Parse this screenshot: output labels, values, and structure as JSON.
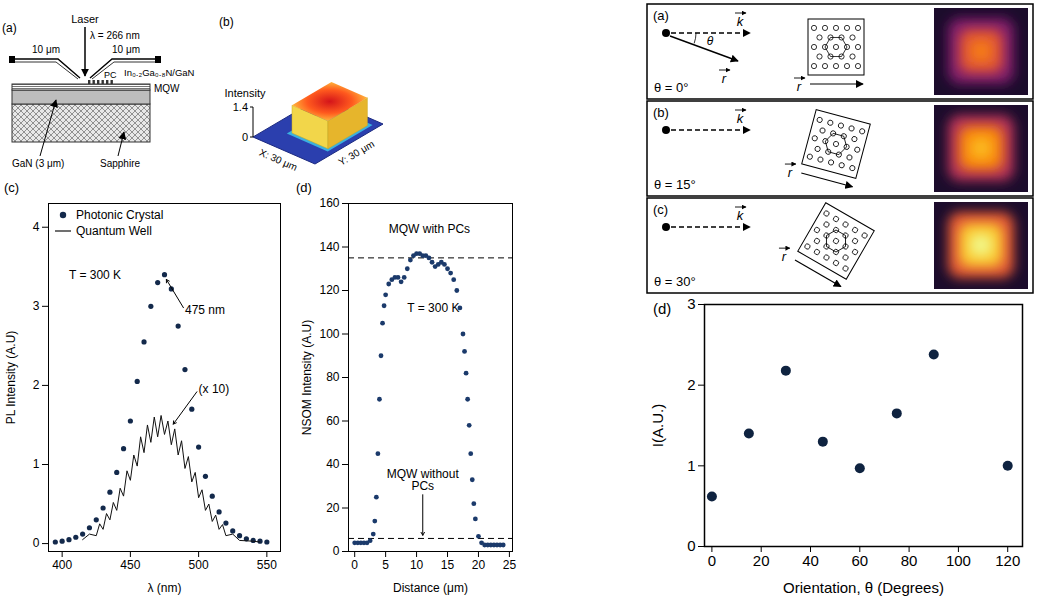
{
  "schematic": {
    "panel": "(a)",
    "laser": "Laser",
    "wavelength": "λ = 266 nm",
    "distance_left": "10 μm",
    "distance_right": "10 μm",
    "pc_label": "PC",
    "mqw_label": "In₀.₂Ga₀.₈N/GaN",
    "mqw_sublabel": "MQW",
    "gan_label": "GaN (3 μm)",
    "substrate_label": "Sapphire"
  },
  "surface": {
    "panel": "(b)",
    "zlabel": "Intensity",
    "zlim": [
      0,
      1.4
    ],
    "zticks": [
      0,
      1.4
    ],
    "peak": 1.3,
    "x_label": "X: 30 μm",
    "y_label": "Y: 30 μm"
  },
  "orientation_panels": {
    "k_label": "k",
    "r_label": "r",
    "panels": [
      {
        "panel": "(a)",
        "label": "θ = 0°",
        "theta": 0,
        "angle_label": "θ"
      },
      {
        "panel": "(b)",
        "label": "θ = 15°",
        "theta": 15
      },
      {
        "panel": "(c)",
        "label": "θ = 30°",
        "theta": 30
      }
    ]
  },
  "chart_data": [
    {
      "panel": "(c)",
      "type": "line",
      "xlabel": "λ (nm)",
      "ylabel": "PL Intensity (A.U)",
      "xlim": [
        390,
        560
      ],
      "xticks": [
        400,
        450,
        500,
        550
      ],
      "ylim": [
        -0.1,
        4.3
      ],
      "yticks": [
        0,
        1,
        2,
        3,
        4
      ],
      "legend": "top-left",
      "series": [
        {
          "name": "Photonic Crystal",
          "type": "scatter",
          "marker": "circle",
          "color": "#13294b",
          "x": [
            395,
            400,
            405,
            410,
            415,
            420,
            425,
            430,
            435,
            440,
            445,
            450,
            455,
            460,
            465,
            470,
            475,
            480,
            485,
            490,
            495,
            500,
            505,
            510,
            515,
            520,
            525,
            530,
            535,
            540,
            545,
            550
          ],
          "values": [
            0.02,
            0.03,
            0.05,
            0.08,
            0.12,
            0.2,
            0.3,
            0.45,
            0.65,
            0.9,
            1.2,
            1.55,
            2.05,
            2.55,
            3.0,
            3.3,
            3.4,
            3.22,
            2.75,
            2.2,
            1.7,
            1.22,
            0.85,
            0.6,
            0.4,
            0.26,
            0.16,
            0.1,
            0.06,
            0.04,
            0.03,
            0.02
          ]
        },
        {
          "name": "Quantum Well",
          "type": "line",
          "line_style": "solid",
          "color": "#111111",
          "x": [
            415,
            420,
            425,
            427.5,
            430,
            432.5,
            435,
            437.5,
            440,
            442.5,
            445,
            447.5,
            450,
            452.5,
            455,
            457.5,
            460,
            462.5,
            465,
            467.5,
            470,
            472.5,
            475,
            477.5,
            480,
            482.5,
            485,
            487.5,
            490,
            492.5,
            495,
            497.5,
            500,
            502.5,
            505,
            507.5,
            510,
            512.5,
            515,
            517.5,
            520,
            525,
            530,
            540,
            545
          ],
          "values": [
            0.05,
            0.12,
            0.1,
            0.25,
            0.18,
            0.38,
            0.3,
            0.52,
            0.42,
            0.7,
            0.6,
            0.92,
            0.8,
            1.12,
            0.98,
            1.35,
            1.15,
            1.5,
            1.28,
            1.6,
            1.35,
            1.62,
            1.38,
            1.55,
            1.25,
            1.45,
            1.12,
            1.3,
            0.95,
            1.1,
            0.78,
            0.9,
            0.58,
            0.68,
            0.42,
            0.5,
            0.28,
            0.36,
            0.18,
            0.24,
            0.1,
            0.12,
            0.04,
            0.03,
            0.02
          ]
        }
      ],
      "annotations": [
        {
          "text": "T = 300 K",
          "x": 405,
          "y": 3.4
        },
        {
          "text": "475 nm",
          "x": 490,
          "y": 2.95,
          "target_x": 476,
          "target_y": 3.35
        },
        {
          "text": "(x 10)",
          "x": 500,
          "y": 1.95,
          "target_x": 481,
          "target_y": 1.5
        }
      ]
    },
    {
      "panel": "(d)",
      "type": "scatter",
      "marker": "circle",
      "color": "#1b3a6b",
      "xlabel": "Distance (μm)",
      "ylabel": "NSOM Intensity (A.U)",
      "xlim": [
        -1,
        25.5
      ],
      "xticks": [
        0,
        5,
        10,
        15,
        20,
        25
      ],
      "ylim": [
        0,
        160
      ],
      "yticks": [
        0,
        20,
        40,
        60,
        80,
        100,
        120,
        140,
        160
      ],
      "x": [
        0,
        0.5,
        1,
        1.5,
        2,
        2.5,
        3,
        3.25,
        3.5,
        3.75,
        4,
        4.25,
        4.5,
        4.75,
        5,
        5.5,
        6,
        6.5,
        7,
        7.5,
        8,
        8.5,
        9,
        9.5,
        10,
        10.5,
        11,
        11.5,
        12,
        12.5,
        13,
        13.5,
        14,
        14.5,
        15,
        15.5,
        16,
        16.5,
        17,
        17.5,
        17.75,
        18,
        18.25,
        18.5,
        18.75,
        19,
        19.25,
        19.5,
        20,
        20.5,
        21,
        21.5,
        22,
        22.5,
        23,
        23.5,
        24
      ],
      "values": [
        4,
        4,
        4,
        4,
        4,
        5,
        8,
        14,
        25,
        45,
        70,
        90,
        105,
        113,
        118,
        123,
        125,
        126,
        126,
        124,
        126,
        130,
        134,
        136,
        137,
        137,
        136,
        136,
        135,
        133,
        131,
        132,
        133,
        132,
        130,
        128,
        125,
        120,
        112,
        100,
        92,
        82,
        70,
        58,
        45,
        33,
        22,
        15,
        7,
        4,
        3,
        3,
        3,
        3,
        3,
        3,
        3
      ],
      "reference_lines": [
        {
          "value": 135,
          "line_style": "dashed"
        },
        {
          "value": 6,
          "line_style": "dashed"
        }
      ],
      "annotations": [
        {
          "text": "MQW with PCs",
          "x": 5.5,
          "y": 148
        },
        {
          "text": "T = 300 K",
          "x": 8.5,
          "y": 112
        },
        {
          "text": "MQW without PCs",
          "x": 11,
          "y": 33,
          "target_x": 11,
          "target_y": 7
        }
      ]
    },
    {
      "panel": "(d)",
      "type": "scatter",
      "marker": "circle",
      "color": "#0f2340",
      "xlabel": "Orientation, θ (Degrees)",
      "ylabel": "I(A.U.)",
      "xlim": [
        -3,
        126
      ],
      "xticks": [
        0,
        20,
        40,
        60,
        80,
        100,
        120
      ],
      "ylim": [
        0,
        3
      ],
      "yticks": [
        0,
        1,
        2,
        3
      ],
      "x": [
        0,
        15,
        30,
        45,
        60,
        75,
        90,
        120
      ],
      "values": [
        0.62,
        1.4,
        2.18,
        1.3,
        0.97,
        1.65,
        2.38,
        1.0
      ]
    }
  ]
}
